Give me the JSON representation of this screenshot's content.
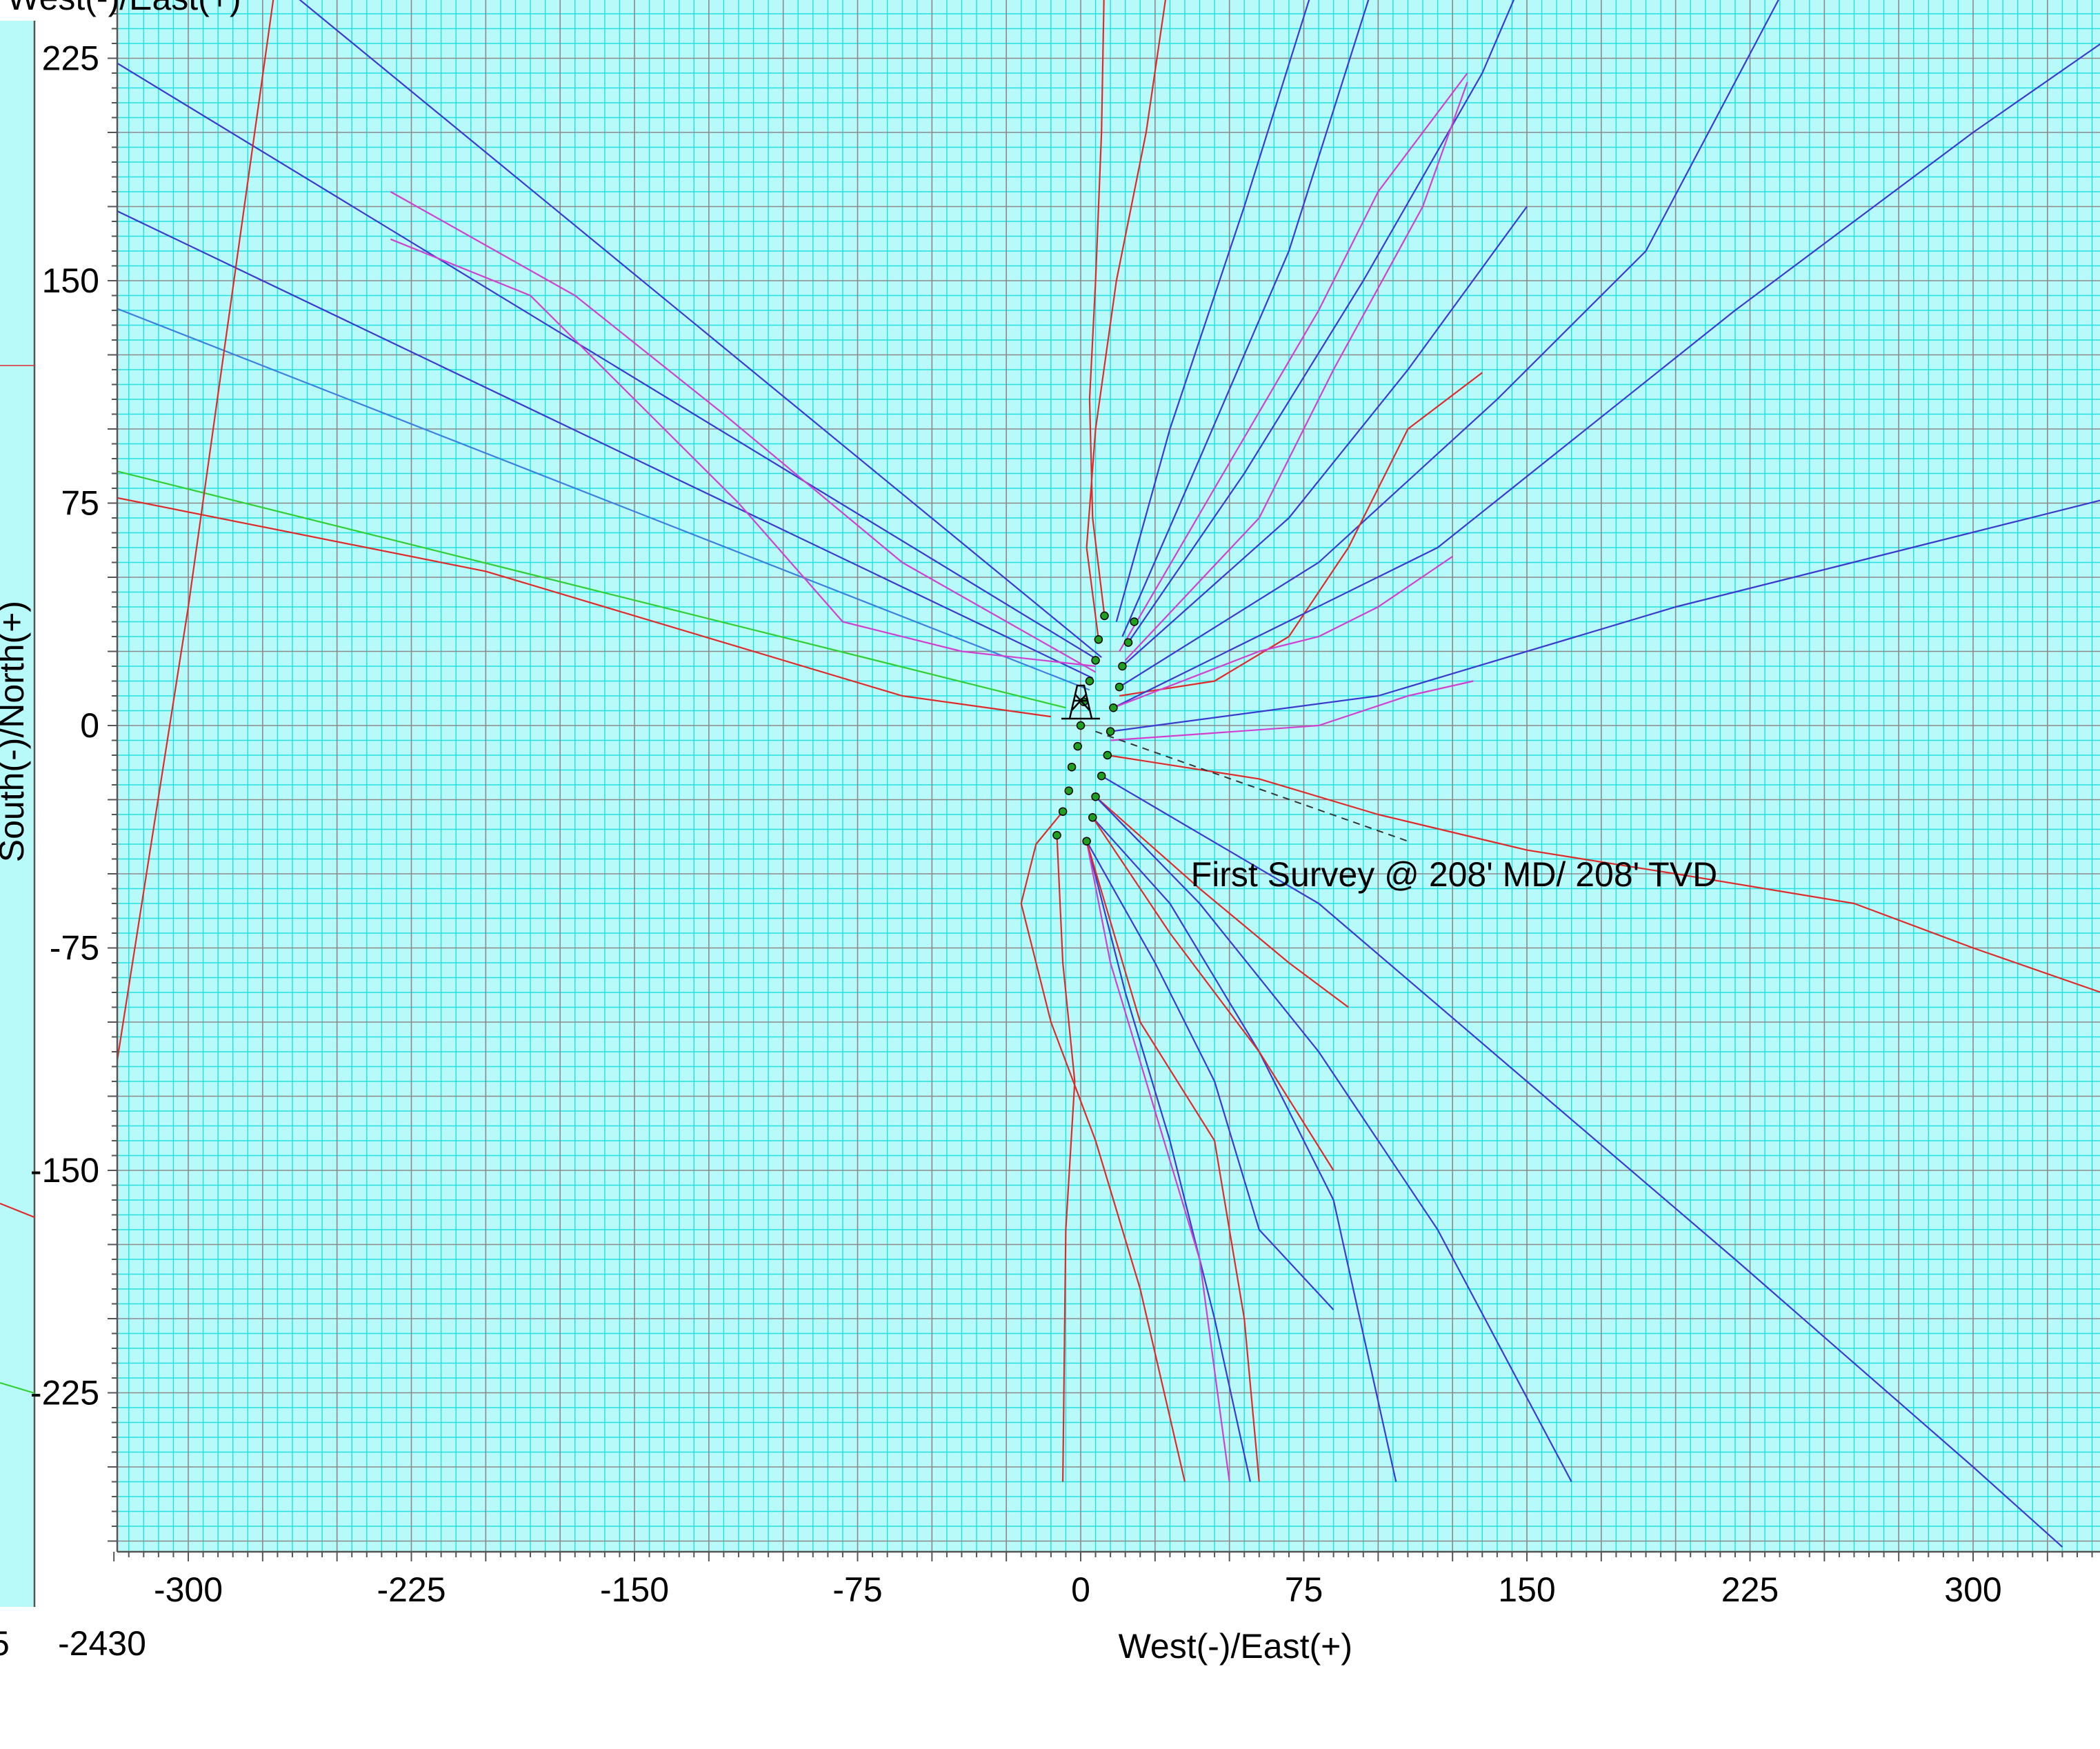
{
  "chart_data": {
    "type": "line",
    "title": "",
    "xlabel": "West(-)/East(+)",
    "ylabel": "South(-)/North(+)",
    "top_label_fragment": "West(-)/East(+)",
    "bottom_left_label": "-2430",
    "bottom_left_fragment": "5",
    "xlim": [
      -325,
      343
    ],
    "ylim": [
      -277,
      245
    ],
    "x_ticks": [
      -300,
      -225,
      -150,
      -75,
      0,
      75,
      150,
      225,
      300
    ],
    "y_ticks": [
      225,
      150,
      75,
      0,
      -75,
      -150,
      -225
    ],
    "grid": true,
    "legend": "none",
    "annotation": {
      "text": "First Survey @ 208' MD/ 208' TVD",
      "anchor": [
        37,
        -50
      ]
    },
    "colors": {
      "background": "#b8fafa",
      "minor_grid": "#22e0e0",
      "major_grid": "#8a8a8a",
      "blue": "#3a3ad0",
      "red": "#e02a2a",
      "magenta": "#d040d0",
      "green": "#30d030",
      "lightblue": "#3a80e0",
      "marker": "#20a020"
    },
    "wellhead": [
      0,
      0
    ],
    "survey_markers": [
      [
        8,
        37
      ],
      [
        6,
        29
      ],
      [
        5,
        22
      ],
      [
        3,
        15
      ],
      [
        1,
        8
      ],
      [
        0,
        0
      ],
      [
        -1,
        -7
      ],
      [
        -3,
        -14
      ],
      [
        -4,
        -22
      ],
      [
        -6,
        -29
      ],
      [
        -8,
        -37
      ],
      [
        18,
        35
      ],
      [
        16,
        28
      ],
      [
        14,
        20
      ],
      [
        13,
        13
      ],
      [
        11,
        6
      ],
      [
        10,
        -2
      ],
      [
        9,
        -10
      ],
      [
        7,
        -17
      ],
      [
        5,
        -24
      ],
      [
        4,
        -31
      ],
      [
        2,
        -39
      ]
    ],
    "series": [
      {
        "color": "blue",
        "points": [
          [
            6,
            22
          ],
          [
            -325,
            224
          ]
        ]
      },
      {
        "color": "blue",
        "points": [
          [
            4,
            16
          ],
          [
            -325,
            174
          ]
        ]
      },
      {
        "color": "lightblue",
        "points": [
          [
            3,
            12
          ],
          [
            -325,
            141
          ]
        ]
      },
      {
        "color": "blue",
        "points": [
          [
            7,
            23
          ],
          [
            -275,
            255
          ]
        ]
      },
      {
        "color": "red",
        "points": [
          [
            -10,
            3
          ],
          [
            -60,
            10
          ],
          [
            -120,
            28
          ],
          [
            -200,
            52
          ],
          [
            -325,
            77
          ]
        ]
      },
      {
        "color": "green",
        "points": [
          [
            -5,
            6
          ],
          [
            -325,
            86
          ]
        ]
      },
      {
        "color": "red",
        "points": [
          [
            -325,
            -120
          ],
          [
            -300,
            40
          ],
          [
            -270,
            255
          ]
        ]
      },
      {
        "color": "magenta",
        "points": [
          [
            5,
            20
          ],
          [
            -40,
            25
          ],
          [
            -80,
            35
          ],
          [
            -115,
            75
          ],
          [
            -150,
            110
          ],
          [
            -185,
            145
          ],
          [
            -232,
            164
          ]
        ]
      },
      {
        "color": "magenta",
        "points": [
          [
            5,
            18
          ],
          [
            -60,
            55
          ],
          [
            -120,
            105
          ],
          [
            -170,
            145
          ],
          [
            -232,
            180
          ]
        ]
      },
      {
        "color": "red",
        "points": [
          [
            8,
            37
          ],
          [
            4,
            70
          ],
          [
            3,
            110
          ],
          [
            5,
            150
          ],
          [
            7,
            200
          ],
          [
            8,
            255
          ]
        ]
      },
      {
        "color": "red",
        "points": [
          [
            6,
            29
          ],
          [
            2,
            60
          ],
          [
            5,
            100
          ],
          [
            12,
            150
          ],
          [
            22,
            200
          ],
          [
            30,
            255
          ]
        ]
      },
      {
        "color": "blue",
        "points": [
          [
            12,
            35
          ],
          [
            30,
            100
          ],
          [
            55,
            175
          ],
          [
            80,
            255
          ]
        ]
      },
      {
        "color": "blue",
        "points": [
          [
            14,
            30
          ],
          [
            40,
            90
          ],
          [
            70,
            160
          ],
          [
            100,
            255
          ]
        ]
      },
      {
        "color": "magenta",
        "points": [
          [
            13,
            25
          ],
          [
            45,
            80
          ],
          [
            80,
            140
          ],
          [
            100,
            180
          ],
          [
            130,
            220
          ]
        ]
      },
      {
        "color": "blue",
        "points": [
          [
            16,
            28
          ],
          [
            55,
            85
          ],
          [
            95,
            150
          ],
          [
            135,
            220
          ],
          [
            150,
            255
          ]
        ]
      },
      {
        "color": "magenta",
        "points": [
          [
            15,
            22
          ],
          [
            60,
            70
          ],
          [
            85,
            120
          ],
          [
            115,
            175
          ],
          [
            130,
            217
          ]
        ]
      },
      {
        "color": "blue",
        "points": [
          [
            14,
            20
          ],
          [
            70,
            70
          ],
          [
            110,
            120
          ],
          [
            150,
            175
          ]
        ]
      },
      {
        "color": "blue",
        "points": [
          [
            13,
            13
          ],
          [
            80,
            55
          ],
          [
            140,
            110
          ],
          [
            190,
            160
          ],
          [
            240,
            255
          ]
        ]
      },
      {
        "color": "red",
        "points": [
          [
            13,
            10
          ],
          [
            45,
            15
          ],
          [
            70,
            30
          ],
          [
            90,
            60
          ],
          [
            110,
            100
          ],
          [
            135,
            119
          ]
        ]
      },
      {
        "color": "blue",
        "points": [
          [
            11,
            6
          ],
          [
            120,
            60
          ],
          [
            220,
            140
          ],
          [
            300,
            200
          ],
          [
            343,
            230
          ]
        ]
      },
      {
        "color": "magenta",
        "points": [
          [
            11,
            6
          ],
          [
            60,
            25
          ],
          [
            80,
            30
          ],
          [
            100,
            40
          ],
          [
            125,
            57
          ]
        ]
      },
      {
        "color": "blue",
        "points": [
          [
            10,
            -2
          ],
          [
            100,
            10
          ],
          [
            200,
            40
          ],
          [
            343,
            76
          ]
        ]
      },
      {
        "color": "magenta",
        "points": [
          [
            10,
            -5
          ],
          [
            80,
            0
          ],
          [
            110,
            10
          ],
          [
            132,
            15
          ]
        ]
      },
      {
        "color": "red",
        "points": [
          [
            9,
            -10
          ],
          [
            60,
            -18
          ],
          [
            100,
            -30
          ],
          [
            150,
            -42
          ],
          [
            200,
            -50
          ],
          [
            260,
            -60
          ],
          [
            300,
            -75
          ],
          [
            343,
            -90
          ]
        ]
      },
      {
        "color": "blue",
        "points": [
          [
            7,
            -17
          ],
          [
            80,
            -60
          ],
          [
            150,
            -120
          ],
          [
            220,
            -180
          ],
          [
            300,
            -250
          ],
          [
            330,
            -277
          ]
        ]
      },
      {
        "color": "red",
        "points": [
          [
            5,
            -24
          ],
          [
            40,
            -55
          ],
          [
            70,
            -80
          ],
          [
            90,
            -95
          ]
        ]
      },
      {
        "color": "blue",
        "points": [
          [
            5,
            -24
          ],
          [
            40,
            -60
          ],
          [
            80,
            -110
          ],
          [
            120,
            -170
          ],
          [
            165,
            -255
          ]
        ]
      },
      {
        "color": "blue",
        "points": [
          [
            4,
            -31
          ],
          [
            30,
            -60
          ],
          [
            60,
            -110
          ],
          [
            85,
            -160
          ],
          [
            106,
            -255
          ]
        ]
      },
      {
        "color": "red",
        "points": [
          [
            4,
            -31
          ],
          [
            30,
            -70
          ],
          [
            60,
            -110
          ],
          [
            85,
            -150
          ]
        ]
      },
      {
        "color": "blue",
        "points": [
          [
            2,
            -39
          ],
          [
            25,
            -80
          ],
          [
            45,
            -120
          ],
          [
            60,
            -170
          ],
          [
            85,
            -197
          ]
        ]
      },
      {
        "color": "blue",
        "points": [
          [
            2,
            -39
          ],
          [
            15,
            -90
          ],
          [
            30,
            -140
          ],
          [
            45,
            -200
          ],
          [
            57,
            -255
          ]
        ]
      },
      {
        "color": "magenta",
        "points": [
          [
            2,
            -39
          ],
          [
            10,
            -80
          ],
          [
            25,
            -130
          ],
          [
            40,
            -180
          ],
          [
            50,
            -255
          ]
        ]
      },
      {
        "color": "red",
        "points": [
          [
            2,
            -39
          ],
          [
            20,
            -100
          ],
          [
            45,
            -140
          ],
          [
            55,
            -200
          ],
          [
            60,
            -255
          ]
        ]
      },
      {
        "color": "red",
        "points": [
          [
            -8,
            -37
          ],
          [
            -6,
            -80
          ],
          [
            -2,
            -120
          ],
          [
            -5,
            -170
          ],
          [
            -6,
            -255
          ]
        ]
      },
      {
        "color": "red",
        "points": [
          [
            -6,
            -29
          ],
          [
            -15,
            -40
          ],
          [
            -20,
            -60
          ],
          [
            -10,
            -100
          ],
          [
            5,
            -140
          ],
          [
            20,
            -190
          ],
          [
            35,
            -255
          ]
        ]
      }
    ],
    "dashed_line": [
      [
        5,
        -2
      ],
      [
        110,
        -39
      ]
    ]
  }
}
